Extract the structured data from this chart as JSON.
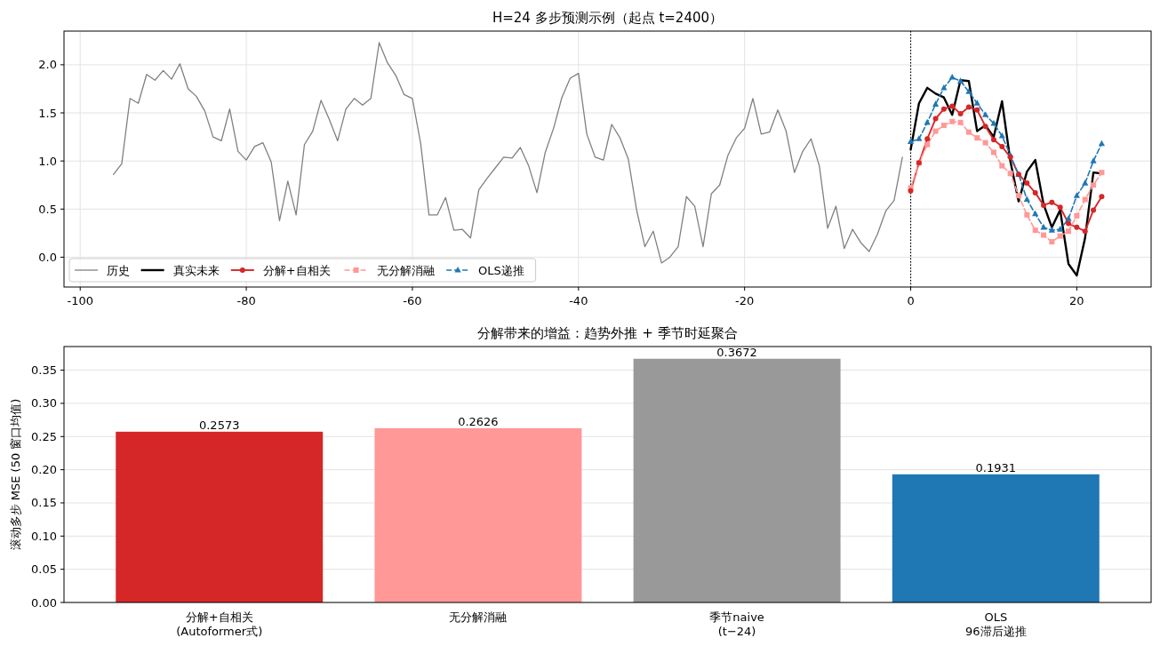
{
  "chart_data": [
    {
      "type": "line",
      "title": "H=24 多步预测示例（起点 t=2400）",
      "xlim": [
        -101.95,
        28.95
      ],
      "ylim": [
        -0.31,
        2.35
      ],
      "xticks": [
        -100,
        -80,
        -60,
        -40,
        -20,
        0,
        20
      ],
      "yticks": [
        {
          "value": 0,
          "label": "0.0"
        },
        {
          "value": 0.5,
          "label": "0.5"
        },
        {
          "value": 1,
          "label": "1.0"
        },
        {
          "value": 1.5,
          "label": "1.5"
        },
        {
          "value": 2,
          "label": "2.0"
        }
      ],
      "grid": true,
      "legend": "bottom left",
      "ref_lines": [
        {
          "axis": "x",
          "value": 0,
          "color": "#000000",
          "line_style": "dotted"
        }
      ],
      "series": [
        {
          "name": "历史",
          "color": "#808080",
          "marker": "none",
          "line_style": "solid",
          "x": [
            -96,
            -95,
            -94,
            -93,
            -92,
            -91,
            -90,
            -89,
            -88,
            -87,
            -86,
            -85,
            -84,
            -83,
            -82,
            -81,
            -80,
            -79,
            -78,
            -77,
            -76,
            -75,
            -74,
            -73,
            -72,
            -71,
            -70,
            -69,
            -68,
            -67,
            -66,
            -65,
            -64,
            -63,
            -62,
            -61,
            -60,
            -59,
            -58,
            -57,
            -56,
            -55,
            -54,
            -53,
            -52,
            -51,
            -50,
            -49,
            -48,
            -47,
            -46,
            -45,
            -44,
            -43,
            -42,
            -41,
            -40,
            -39,
            -38,
            -37,
            -36,
            -35,
            -34,
            -33,
            -32,
            -31,
            -30,
            -29,
            -28,
            -27,
            -26,
            -25,
            -24,
            -23,
            -22,
            -21,
            -20,
            -19,
            -18,
            -17,
            -16,
            -15,
            -14,
            -13,
            -12,
            -11,
            -10,
            -9,
            -8,
            -7,
            -6,
            -5,
            -4,
            -3,
            -2,
            -1
          ],
          "values": [
            0.86,
            0.97,
            1.65,
            1.6,
            1.9,
            1.84,
            1.94,
            1.85,
            2.01,
            1.75,
            1.67,
            1.52,
            1.25,
            1.21,
            1.54,
            1.1,
            1.01,
            1.15,
            1.19,
            0.99,
            0.38,
            0.79,
            0.44,
            1.17,
            1.31,
            1.63,
            1.43,
            1.21,
            1.54,
            1.65,
            1.58,
            1.65,
            2.23,
            2.02,
            1.89,
            1.69,
            1.65,
            1.18,
            0.44,
            0.44,
            0.62,
            0.28,
            0.29,
            0.2,
            0.7,
            0.82,
            0.93,
            1.04,
            1.03,
            1.14,
            0.95,
            0.67,
            1.09,
            1.34,
            1.66,
            1.86,
            1.91,
            1.28,
            1.04,
            1.01,
            1.38,
            1.24,
            1.02,
            0.49,
            0.11,
            0.27,
            -0.06,
            0.0,
            0.11,
            0.63,
            0.53,
            0.11,
            0.66,
            0.75,
            1.06,
            1.24,
            1.34,
            1.65,
            1.28,
            1.3,
            1.53,
            1.31,
            0.88,
            1.1,
            1.23,
            0.95,
            0.3,
            0.53,
            0.09,
            0.29,
            0.15,
            0.06,
            0.24,
            0.48,
            0.59,
            1.04
          ]
        },
        {
          "name": "真实未来",
          "color": "#000000",
          "marker": "none",
          "line_style": "solid",
          "x": [
            0,
            1,
            2,
            3,
            4,
            5,
            6,
            7,
            8,
            9,
            10,
            11,
            12,
            13,
            14,
            15,
            16,
            17,
            18,
            19,
            20,
            21,
            22,
            23
          ],
          "values": [
            1.12,
            1.6,
            1.76,
            1.7,
            1.66,
            1.48,
            1.84,
            1.83,
            1.31,
            1.37,
            1.25,
            1.62,
            1.0,
            0.58,
            0.89,
            1.01,
            0.55,
            0.31,
            0.49,
            -0.07,
            -0.19,
            0.2,
            0.88,
            0.87
          ]
        },
        {
          "name": "分解+自相关",
          "color": "#d62728",
          "marker": "circle",
          "line_style": "solid",
          "x": [
            0,
            1,
            2,
            3,
            4,
            5,
            6,
            7,
            8,
            9,
            10,
            11,
            12,
            13,
            14,
            15,
            16,
            17,
            18,
            19,
            20,
            21,
            22,
            23
          ],
          "values": [
            0.69,
            0.98,
            1.23,
            1.44,
            1.54,
            1.57,
            1.49,
            1.56,
            1.53,
            1.36,
            1.22,
            1.15,
            1.04,
            0.86,
            0.77,
            0.67,
            0.54,
            0.57,
            0.52,
            0.35,
            0.31,
            0.27,
            0.49,
            0.63
          ]
        },
        {
          "name": "无分解消融",
          "color": "#ff9896",
          "marker": "square",
          "line_style": "dashed",
          "x": [
            0,
            1,
            2,
            3,
            4,
            5,
            6,
            7,
            8,
            9,
            10,
            11,
            12,
            13,
            14,
            15,
            16,
            17,
            18,
            19,
            20,
            21,
            22,
            23
          ],
          "values": [
            0.72,
            0.98,
            1.17,
            1.31,
            1.37,
            1.41,
            1.4,
            1.3,
            1.24,
            1.19,
            1.09,
            0.95,
            0.87,
            0.64,
            0.44,
            0.28,
            0.23,
            0.16,
            0.22,
            0.27,
            0.43,
            0.6,
            0.75,
            0.88
          ]
        },
        {
          "name": "OLS递推",
          "color": "#1f77b4",
          "marker": "triangle",
          "line_style": "dashed",
          "x": [
            0,
            1,
            2,
            3,
            4,
            5,
            6,
            7,
            8,
            9,
            10,
            11,
            12,
            13,
            14,
            15,
            16,
            17,
            18,
            19,
            20,
            21,
            22,
            23
          ],
          "values": [
            1.2,
            1.23,
            1.4,
            1.59,
            1.76,
            1.87,
            1.83,
            1.72,
            1.6,
            1.48,
            1.39,
            1.26,
            1.06,
            0.86,
            0.6,
            0.45,
            0.31,
            0.28,
            0.29,
            0.4,
            0.64,
            0.77,
            1.0,
            1.18
          ]
        }
      ]
    },
    {
      "type": "bar",
      "title": "分解带来的增益：趋势外推 + 季节时延聚合",
      "ylabel": "滚动多步 MSE (50 窗口均值)",
      "categories": [
        "分解+自相关\n(Autoformer式)",
        "无分解消融",
        "季节naive\n(t−24)",
        "OLS\n96滞后递推"
      ],
      "values": [
        0.2573,
        0.2626,
        0.3672,
        0.1931
      ],
      "colors": [
        "#d62728",
        "#ff9896",
        "#999999",
        "#1f77b4"
      ],
      "ylim": [
        0,
        0.3856
      ],
      "yticks": [
        {
          "value": 0,
          "label": "0.00"
        },
        {
          "value": 0.05,
          "label": "0.05"
        },
        {
          "value": 0.1,
          "label": "0.10"
        },
        {
          "value": 0.15,
          "label": "0.15"
        },
        {
          "value": 0.2,
          "label": "0.20"
        },
        {
          "value": 0.25,
          "label": "0.25"
        },
        {
          "value": 0.3,
          "label": "0.30"
        },
        {
          "value": 0.35,
          "label": "0.35"
        }
      ],
      "grid": "y",
      "data_labels": true
    }
  ]
}
